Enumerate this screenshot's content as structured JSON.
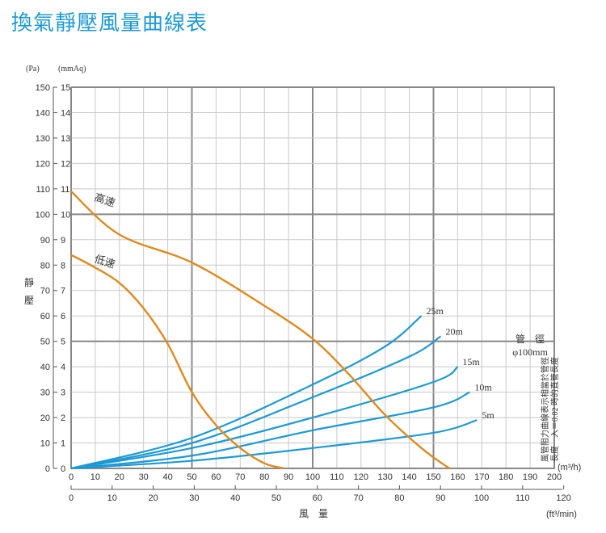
{
  "title": "換氣靜壓風量曲線表",
  "chart_data": {
    "type": "line",
    "y_units": {
      "pa": "(Pa)",
      "mmaq": "(mmAq)"
    },
    "y_ticks_pa": [
      0,
      10,
      20,
      30,
      40,
      50,
      60,
      70,
      80,
      90,
      100,
      110,
      120,
      130,
      140,
      150
    ],
    "y_ticks_mmaq": [
      0,
      1,
      2,
      3,
      4,
      5,
      6,
      7,
      8,
      9,
      10,
      11,
      12,
      13,
      14,
      15
    ],
    "x_ticks_m3h": [
      0,
      10,
      20,
      30,
      40,
      50,
      60,
      70,
      80,
      90,
      100,
      110,
      120,
      130,
      140,
      150,
      160,
      170,
      180,
      190,
      200
    ],
    "x_ticks_ft3min": [
      0,
      10,
      20,
      30,
      40,
      50,
      60,
      70,
      80,
      90,
      100,
      110,
      120
    ],
    "xlim_m3h": [
      0,
      200
    ],
    "ylim_pa": [
      0,
      150
    ],
    "ylabel": "靜壓",
    "xlabel": "風量",
    "x_unit_m3h": "(m³/h)",
    "x_unit_ft3min": "(ft³/min)",
    "grid": true,
    "fan_series": [
      {
        "name": "高速",
        "x": [
          0,
          20,
          50,
          80,
          100,
          115,
          130,
          145,
          155,
          157
        ],
        "y": [
          109,
          92,
          81,
          64,
          51,
          37,
          21,
          8,
          1,
          0
        ]
      },
      {
        "name": "低速",
        "x": [
          0,
          10,
          20,
          30,
          40,
          50,
          60,
          70,
          80,
          88
        ],
        "y": [
          84,
          79,
          73,
          63,
          49,
          30,
          17,
          8,
          2,
          0
        ]
      }
    ],
    "duct_series": [
      {
        "name": "25m",
        "x": [
          0,
          50,
          100,
          130,
          145
        ],
        "y": [
          0,
          12,
          33,
          48,
          60
        ]
      },
      {
        "name": "20m",
        "x": [
          0,
          50,
          100,
          140,
          153
        ],
        "y": [
          0,
          10,
          28,
          44,
          52
        ]
      },
      {
        "name": "15m",
        "x": [
          0,
          50,
          100,
          150,
          160
        ],
        "y": [
          0,
          8,
          20,
          34,
          40
        ]
      },
      {
        "name": "10m",
        "x": [
          0,
          50,
          100,
          150,
          165
        ],
        "y": [
          0,
          5,
          15,
          24,
          30
        ]
      },
      {
        "name": "5m",
        "x": [
          0,
          50,
          100,
          150,
          168
        ],
        "y": [
          0,
          3,
          8,
          14,
          19
        ]
      }
    ],
    "annotation": {
      "heading": "管　徑",
      "diameter": "φ100mm",
      "note_line1": "風管阻力曲線表示相當於管徑",
      "note_line2": "長度　入＝0.02 時的直管長度"
    }
  },
  "colors": {
    "fan_curve": "#e08a1e",
    "duct_curve": "#1d9ad6",
    "title": "#1c9ad6"
  }
}
